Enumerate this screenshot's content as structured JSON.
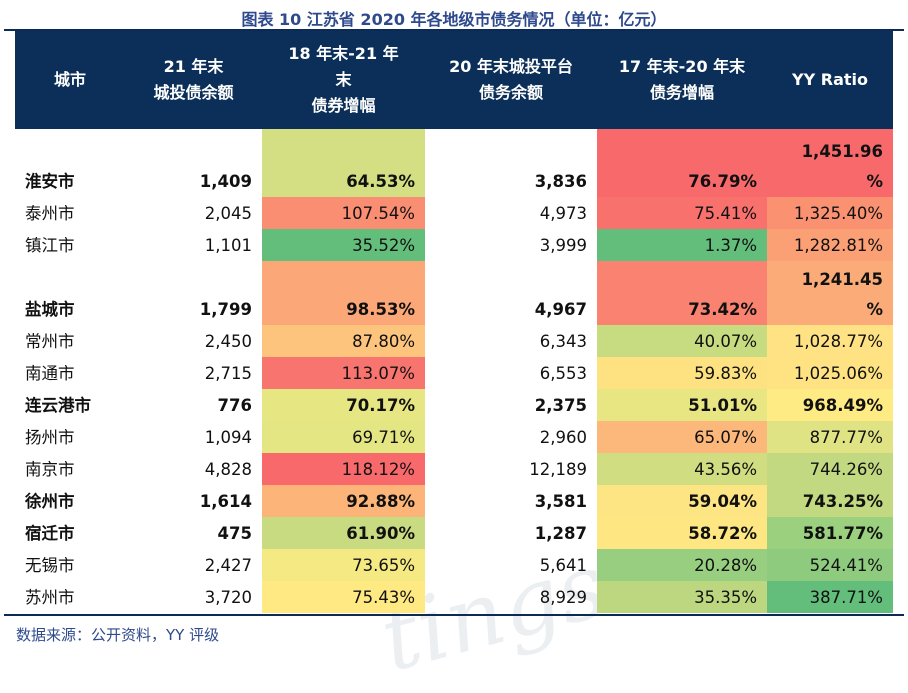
{
  "title": "图表 10 江苏省 2020 年各地级市债务情况（单位：亿元）",
  "headers": [
    "城市",
    "21 年末\n城投债余额",
    "18 年末-21 年\n末\n债券增幅",
    "20 年末城投平台\n债务余额",
    "17 年末-20 年末\n债务增幅",
    "YY Ratio"
  ],
  "rows": [
    {
      "city": "淮安市",
      "c2": "1,409",
      "c3": "64.53%",
      "c4": "3,836",
      "c5": "76.79%",
      "c6": "1,451.96\n%",
      "bold": true,
      "colors": [
        "#D3DF82",
        "#F8696B",
        "#F8696B"
      ]
    },
    {
      "city": "泰州市",
      "c2": "2,045",
      "c3": "107.54%",
      "c4": "4,973",
      "c5": "75.41%",
      "c6": "1,325.40%",
      "bold": false,
      "colors": [
        "#F98E72",
        "#F8716D",
        "#FA9272"
      ]
    },
    {
      "city": "镇江市",
      "c2": "1,101",
      "c3": "35.52%",
      "c4": "3,999",
      "c5": "1.37%",
      "c6": "1,282.81%",
      "bold": false,
      "colors": [
        "#63BE7B",
        "#63BE7B",
        "#FB9F75"
      ]
    },
    {
      "city": "盐城市",
      "c2": "1,799",
      "c3": "98.53%",
      "c4": "4,967",
      "c5": "73.42%",
      "c6": "1,241.45\n%",
      "bold": true,
      "colors": [
        "#FBA777",
        "#F98370",
        "#FBAB77"
      ]
    },
    {
      "city": "常州市",
      "c2": "2,450",
      "c3": "87.80%",
      "c4": "6,343",
      "c5": "40.07%",
      "c6": "1,028.77%",
      "bold": false,
      "colors": [
        "#FDC47D",
        "#C7DB80",
        "#FFE283"
      ]
    },
    {
      "city": "南通市",
      "c2": "2,715",
      "c3": "113.07%",
      "c4": "6,553",
      "c5": "59.83%",
      "c6": "1,025.06%",
      "bold": false,
      "colors": [
        "#F8746E",
        "#FEE282",
        "#FFE383"
      ]
    },
    {
      "city": "连云港市",
      "c2": "776",
      "c3": "70.17%",
      "c4": "2,375",
      "c5": "51.01%",
      "c6": "968.49%",
      "bold": true,
      "colors": [
        "#E6E683",
        "#E8E583",
        "#FFEB84"
      ]
    },
    {
      "city": "扬州市",
      "c2": "1,094",
      "c3": "69.71%",
      "c4": "2,960",
      "c5": "65.07%",
      "c6": "877.77%",
      "bold": false,
      "colors": [
        "#E4E583",
        "#FCB87A",
        "#E0E383"
      ]
    },
    {
      "city": "南京市",
      "c2": "4,828",
      "c3": "118.12%",
      "c4": "12,189",
      "c5": "43.56%",
      "c6": "744.26%",
      "bold": false,
      "colors": [
        "#F8696B",
        "#D0DE81",
        "#C2D981"
      ]
    },
    {
      "city": "徐州市",
      "c2": "1,614",
      "c3": "92.88%",
      "c4": "3,581",
      "c5": "59.04%",
      "c6": "743.25%",
      "bold": true,
      "colors": [
        "#FCB479",
        "#FEE583",
        "#C2D981"
      ]
    },
    {
      "city": "宿迁市",
      "c2": "475",
      "c3": "61.90%",
      "c4": "1,287",
      "c5": "58.72%",
      "c6": "581.77%",
      "bold": true,
      "colors": [
        "#C8DB81",
        "#FEE683",
        "#9BD07F"
      ]
    },
    {
      "city": "无锡市",
      "c2": "2,427",
      "c3": "73.65%",
      "c4": "5,641",
      "c5": "20.28%",
      "c6": "524.41%",
      "bold": false,
      "colors": [
        "#F5E984",
        "#97CE7F",
        "#8ECB7E"
      ]
    },
    {
      "city": "苏州市",
      "c2": "3,720",
      "c3": "75.43%",
      "c4": "8,929",
      "c5": "35.35%",
      "c6": "387.71%",
      "bold": false,
      "colors": [
        "#FEE983",
        "#BCD780",
        "#63BE7B"
      ]
    }
  ],
  "source": "数据来源：公开资料，YY 评级",
  "watermark": "Ratings"
}
